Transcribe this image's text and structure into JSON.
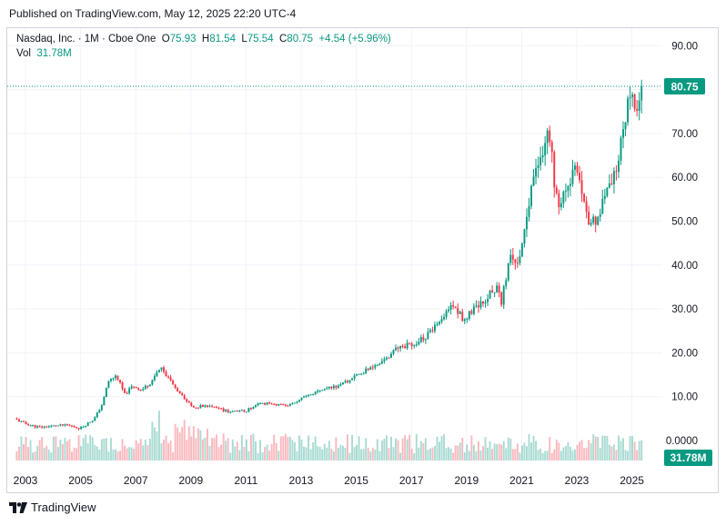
{
  "header": {
    "published": "Published on TradingView.com, May 12, 2025 22:20 UTC-4"
  },
  "legend": {
    "symbol": "Nasdaq, Inc. · 1M · Cboe One",
    "open_label": "O",
    "open": "75.93",
    "high_label": "H",
    "high": "81.54",
    "low_label": "L",
    "low": "75.54",
    "close_label": "C",
    "close": "80.75",
    "change": "+4.54 (+5.96%)",
    "vol_label": "Vol",
    "vol": "31.78M"
  },
  "footer": {
    "brand": "TradingView",
    "logo_icon": "tradingview-logo-icon"
  },
  "colors": {
    "up": "#089981",
    "down": "#f23645",
    "price_tag": "#089981",
    "grid": "#f0f3fa"
  },
  "chart_data": {
    "type": "candlestick",
    "interval": "1M",
    "y_ticks": [
      "90.00",
      "80.00",
      "70.00",
      "60.00",
      "50.00",
      "40.00",
      "30.00",
      "20.00",
      "10.00",
      "0.0000"
    ],
    "x_ticks": [
      "2003",
      "2005",
      "2007",
      "2009",
      "2011",
      "2013",
      "2015",
      "2017",
      "2019",
      "2021",
      "2023",
      "2025"
    ],
    "ylim": [
      0,
      90
    ],
    "last_price": 80.75,
    "last_price_label": "80.75",
    "last_volume_label": "31.78M",
    "grid": true,
    "price_keyframes": [
      [
        2002.6,
        5.0
      ],
      [
        2003.0,
        3.8
      ],
      [
        2003.5,
        3.0
      ],
      [
        2004.0,
        3.3
      ],
      [
        2004.5,
        3.5
      ],
      [
        2005.0,
        2.8
      ],
      [
        2005.5,
        5.0
      ],
      [
        2005.8,
        8.5
      ],
      [
        2006.0,
        13.5
      ],
      [
        2006.3,
        14.8
      ],
      [
        2006.6,
        10.5
      ],
      [
        2006.9,
        12.5
      ],
      [
        2007.2,
        11.5
      ],
      [
        2007.5,
        13.0
      ],
      [
        2007.9,
        16.5
      ],
      [
        2008.2,
        14.0
      ],
      [
        2008.5,
        11.5
      ],
      [
        2008.8,
        9.5
      ],
      [
        2009.1,
        7.5
      ],
      [
        2009.5,
        8.0
      ],
      [
        2010.0,
        7.2
      ],
      [
        2010.5,
        6.5
      ],
      [
        2011.0,
        6.8
      ],
      [
        2011.5,
        8.5
      ],
      [
        2012.0,
        8.3
      ],
      [
        2012.5,
        7.8
      ],
      [
        2013.0,
        9.5
      ],
      [
        2013.5,
        10.8
      ],
      [
        2014.0,
        12.0
      ],
      [
        2014.5,
        12.8
      ],
      [
        2015.0,
        14.8
      ],
      [
        2015.5,
        16.5
      ],
      [
        2016.0,
        18.2
      ],
      [
        2016.5,
        21.0
      ],
      [
        2017.0,
        22.0
      ],
      [
        2017.5,
        23.5
      ],
      [
        2018.0,
        26.5
      ],
      [
        2018.5,
        31.0
      ],
      [
        2018.9,
        27.5
      ],
      [
        2019.3,
        30.0
      ],
      [
        2019.8,
        33.0
      ],
      [
        2020.1,
        35.0
      ],
      [
        2020.25,
        31.0
      ],
      [
        2020.6,
        42.0
      ],
      [
        2020.9,
        41.0
      ],
      [
        2021.2,
        52.0
      ],
      [
        2021.5,
        61.0
      ],
      [
        2021.8,
        67.0
      ],
      [
        2022.0,
        69.5
      ],
      [
        2022.3,
        53.0
      ],
      [
        2022.5,
        56.0
      ],
      [
        2022.9,
        62.0
      ],
      [
        2023.1,
        58.0
      ],
      [
        2023.4,
        50.0
      ],
      [
        2023.7,
        49.5
      ],
      [
        2023.9,
        54.0
      ],
      [
        2024.2,
        57.5
      ],
      [
        2024.5,
        62.0
      ],
      [
        2024.7,
        72.0
      ],
      [
        2024.9,
        79.0
      ],
      [
        2025.0,
        81.5
      ],
      [
        2025.1,
        75.0
      ],
      [
        2025.25,
        75.9
      ],
      [
        2025.35,
        80.75
      ]
    ]
  }
}
